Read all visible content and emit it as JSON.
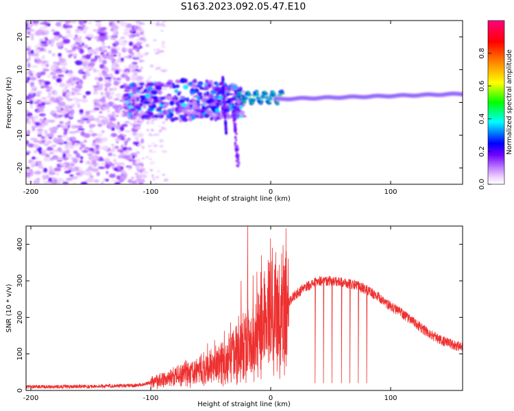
{
  "title": "S163.2023.092.05.47.E10",
  "chart_data": [
    {
      "id": "spectrogram",
      "type": "heatmap",
      "xlabel": "Height of straight line (km)",
      "ylabel": "Frequency (Hz)",
      "xlim": [
        -204,
        160
      ],
      "ylim": [
        -25,
        25
      ],
      "xticks": [
        -200,
        -100,
        0,
        100
      ],
      "xtick_labels": [
        "-200",
        "-100",
        "0",
        "100"
      ],
      "yticks": [
        -20,
        -10,
        0,
        10,
        20
      ],
      "ytick_labels": [
        "-20",
        "-10",
        "0",
        "10",
        "20"
      ],
      "colorbar": {
        "label": "Normalized spectral amplitude",
        "range": [
          0,
          1
        ],
        "ticks": [
          0.0,
          0.2,
          0.4,
          0.6,
          0.8
        ],
        "tick_labels": [
          "0.0",
          "0.2",
          "0.4",
          "0.6",
          "0.8"
        ],
        "colormap": "rainbow-white-purple-blue-cyan-green-yellow-red-pink"
      },
      "segments": [
        {
          "name": "noise",
          "x_range": [
            -204,
            -107
          ],
          "freq_range": [
            -25,
            25
          ],
          "amplitude": 0.12
        },
        {
          "name": "chaotic",
          "x_range": [
            -122,
            -20
          ],
          "freq_range": [
            -12,
            11
          ],
          "amplitude": 0.3
        },
        {
          "name": "oscillating-onset",
          "x_range": [
            -25,
            8
          ],
          "center_freq": 1.5,
          "amplitude": 0.55
        },
        {
          "name": "stable-trace",
          "x_range": [
            8,
            160
          ],
          "start_freq": 1,
          "end_freq": 2.5,
          "amplitude": 0.75
        }
      ]
    },
    {
      "id": "snr",
      "type": "line",
      "xlabel": "Height of straight line (km)",
      "ylabel": "SNR (10 * v/v)",
      "xlim": [
        -204,
        160
      ],
      "ylim": [
        0,
        450
      ],
      "xticks": [
        -200,
        -100,
        0,
        100
      ],
      "xtick_labels": [
        "-200",
        "-100",
        "0",
        "100"
      ],
      "yticks": [
        0,
        100,
        200,
        300,
        400
      ],
      "ytick_labels": [
        "0",
        "100",
        "200",
        "300",
        "400"
      ],
      "series": [
        {
          "name": "SNR",
          "color": "#ee3030",
          "x": [
            -204,
            -150,
            -110,
            -100,
            -80,
            -60,
            -40,
            -30,
            -20,
            -10,
            0,
            10,
            20,
            30,
            40,
            50,
            60,
            70,
            80,
            90,
            100,
            110,
            120,
            130,
            140,
            150,
            160
          ],
          "mean": [
            10,
            11,
            14,
            22,
            35,
            55,
            75,
            100,
            135,
            160,
            205,
            225,
            260,
            285,
            300,
            300,
            295,
            290,
            275,
            255,
            230,
            210,
            185,
            160,
            140,
            128,
            118
          ],
          "spikes": [
            {
              "x": -19.5,
              "value": 450
            },
            {
              "x": 10,
              "value": 398
            },
            {
              "x": -8,
              "value": 370
            },
            {
              "x": -1,
              "value": 350
            },
            {
              "x": -25,
              "value": 300
            },
            {
              "x": -15,
              "value": 315
            }
          ],
          "dropouts": [
            37,
            44,
            51,
            59,
            66,
            73,
            80
          ]
        }
      ]
    }
  ]
}
